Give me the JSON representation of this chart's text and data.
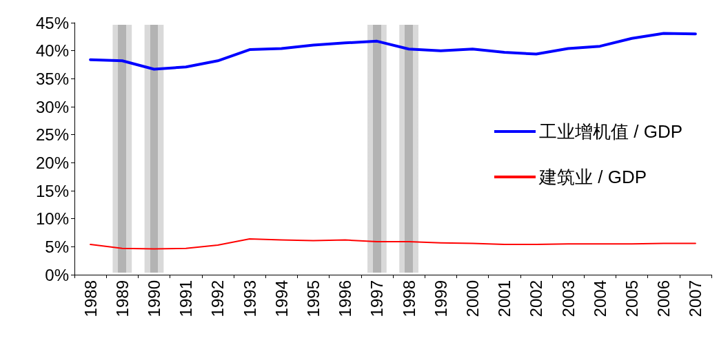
{
  "chart_data": {
    "type": "line",
    "categories": [
      "1988",
      "1989",
      "1990",
      "1991",
      "1992",
      "1993",
      "1994",
      "1995",
      "1996",
      "1997",
      "1998",
      "1999",
      "2000",
      "2001",
      "2002",
      "2003",
      "2004",
      "2005",
      "2006",
      "2007"
    ],
    "series": [
      {
        "name": "工业增机值 / GDP",
        "color": "#0000ff",
        "values": [
          38.4,
          38.2,
          36.7,
          37.1,
          38.2,
          40.2,
          40.4,
          41.0,
          41.4,
          41.7,
          40.3,
          40.0,
          40.3,
          39.7,
          39.4,
          40.4,
          40.8,
          42.2,
          43.1,
          43.0
        ]
      },
      {
        "name": "建筑业 / GDP",
        "color": "#ff0000",
        "values": [
          5.4,
          4.7,
          4.6,
          4.7,
          5.3,
          6.4,
          6.2,
          6.1,
          6.2,
          5.9,
          5.9,
          5.7,
          5.6,
          5.4,
          5.4,
          5.5,
          5.5,
          5.5,
          5.6,
          5.6
        ]
      }
    ],
    "ylim": [
      0,
      45
    ],
    "yticks": [
      {
        "value": 0,
        "label": "0%"
      },
      {
        "value": 5,
        "label": "5%"
      },
      {
        "value": 10,
        "label": "10%"
      },
      {
        "value": 15,
        "label": "15%"
      },
      {
        "value": 20,
        "label": "20%"
      },
      {
        "value": 25,
        "label": "25%"
      },
      {
        "value": 30,
        "label": "30%"
      },
      {
        "value": 35,
        "label": "35%"
      },
      {
        "value": 40,
        "label": "40%"
      },
      {
        "value": 45,
        "label": "45%"
      }
    ],
    "bands": [
      {
        "axis": "x",
        "from": "1989",
        "to": "1989",
        "color": "#d9d9d9"
      },
      {
        "axis": "x",
        "from": "1990",
        "to": "1990",
        "color": "#d9d9d9"
      },
      {
        "axis": "x",
        "from": "1997",
        "to": "1997",
        "color": "#d9d9d9"
      },
      {
        "axis": "x",
        "from": "1998",
        "to": "1998",
        "color": "#d9d9d9"
      }
    ],
    "grid": false,
    "legend": "right",
    "marker": "none",
    "line_style": "solid"
  }
}
